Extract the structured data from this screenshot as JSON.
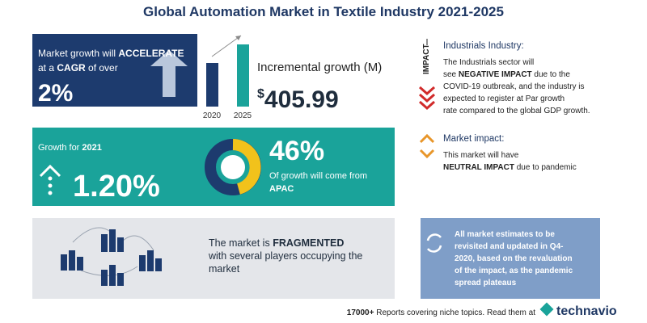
{
  "title": "Global Automation Market in Textile Industry 2021-2025",
  "cagr": {
    "lines": [
      [
        "Market growth will ",
        {
          "bold": "ACCELERATE"
        }
      ],
      [
        "at a ",
        {
          "bold": "CAGR"
        },
        " of over"
      ]
    ],
    "value": "2%"
  },
  "incremental": {
    "years": [
      "2020",
      "2025"
    ],
    "label": "Incremental growth (M)",
    "currency": "$",
    "value": "405.99"
  },
  "growth": {
    "lines": [
      [
        "Growth for ",
        {
          "bold": "2021"
        }
      ]
    ],
    "value": "1.20%"
  },
  "region": {
    "value": "46%",
    "lines": [
      [
        "Of growth will come from"
      ],
      [
        {
          "bold": "APAC"
        }
      ]
    ]
  },
  "vendors": {
    "lines": [
      [
        "The market is ",
        {
          "bold": "FRAGMENTED"
        }
      ],
      [
        "with several players occupying the"
      ],
      [
        "market"
      ]
    ]
  },
  "industry": {
    "tag": "IMPACT",
    "heading": "Industrials Industry:",
    "lines": [
      [
        "The Industrials sector will"
      ],
      [
        "see ",
        {
          "bold": "NEGATIVE IMPACT"
        },
        " due to the"
      ],
      [
        "COVID-19 outbreak, and the industry is"
      ],
      [
        "expected to register at Par growth"
      ],
      [
        "rate compared to the global GDP growth."
      ]
    ]
  },
  "market_impact": {
    "heading": "Market impact:",
    "lines": [
      [
        "This market will have"
      ],
      [
        {
          "bold": "NEUTRAL IMPACT"
        },
        " due to pandemic"
      ]
    ]
  },
  "note": {
    "lines": [
      [
        "All market estimates to be"
      ],
      [
        "revisited and updated in Q4-"
      ],
      [
        "2020, based on the revaluation"
      ],
      [
        "of the impact, as the pandemic"
      ],
      [
        "spread plateaus"
      ]
    ]
  },
  "footer": {
    "lines": [
      [
        {
          "bold": "17000+"
        },
        " Reports covering niche topics. Read them at"
      ]
    ],
    "brand": "technavio"
  }
}
